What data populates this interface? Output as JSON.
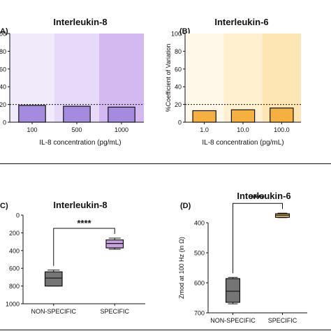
{
  "chart_data": [
    {
      "panel_label": "A)",
      "type": "bar",
      "title": "Interleukin-8",
      "xlabel": "IL-8 concentration (pg/mL)",
      "ylabel": "",
      "categories": [
        "100",
        "500",
        "1000"
      ],
      "values": [
        19,
        18,
        17
      ],
      "ylim": [
        0,
        100
      ],
      "yticks": [
        "0",
        "20",
        "40",
        "60",
        "80",
        "100"
      ],
      "ytick_values": [
        0,
        20,
        40,
        60,
        80,
        100
      ],
      "reference_line": 20,
      "bar_color": "#a48be0",
      "background_bands": [
        "#f1eafb",
        "#e6daf8",
        "#d4b8f0"
      ]
    },
    {
      "panel_label": "(B)",
      "type": "bar",
      "title": "Interleukin-6",
      "xlabel": "IL-8 concentration (pg/mL)",
      "ylabel": "%Coefficient of Variation",
      "categories": [
        "1.0",
        "10.0",
        "100.0"
      ],
      "values": [
        13,
        14,
        16
      ],
      "ylim": [
        0,
        100
      ],
      "yticks": [
        "0",
        "20",
        "40",
        "60",
        "80",
        "100"
      ],
      "ytick_values": [
        0,
        20,
        40,
        60,
        80,
        100
      ],
      "reference_line": 20,
      "bar_color": "#f5b041",
      "background_bands": [
        "#fff8e8",
        "#fff0cf",
        "#fde6b3"
      ]
    },
    {
      "panel_label": "C)",
      "type": "box",
      "title": "Interleukin-8",
      "xlabel": "",
      "ylabel": "",
      "categories": [
        "NON-SPECIFIC",
        "SPECIFIC"
      ],
      "boxes": [
        {
          "name": "NON-SPECIFIC",
          "min": 620,
          "q1": 640,
          "median": 710,
          "q3": 800,
          "max": 800,
          "color": "#757575"
        },
        {
          "name": "SPECIFIC",
          "min": 260,
          "q1": 280,
          "median": 320,
          "q3": 370,
          "max": 385,
          "color": "#c9a0e0"
        }
      ],
      "ylim": [
        1000,
        0
      ],
      "inverted": true,
      "yticks": [
        "0",
        "200",
        "400",
        "600",
        "800",
        "1000"
      ],
      "ytick_values": [
        0,
        200,
        400,
        600,
        800,
        1000
      ],
      "significance": "****"
    },
    {
      "panel_label": "(D)",
      "type": "box",
      "title": "Interleukin-6",
      "xlabel": "",
      "ylabel": "Zmod at 100  Hz (in Ω)",
      "categories": [
        "NON-SPECIFIC",
        "SPECIFIC"
      ],
      "boxes": [
        {
          "name": "NON-SPECIFIC",
          "min": 582,
          "q1": 586,
          "median": 628,
          "q3": 665,
          "max": 670,
          "color": "#757575"
        },
        {
          "name": "SPECIFIC",
          "min": 368,
          "q1": 370,
          "median": 375,
          "q3": 382,
          "max": 383,
          "color": "#f5c460"
        }
      ],
      "ylim": [
        700,
        400
      ],
      "inverted": true,
      "yticks": [
        "400",
        "500",
        "600",
        "700"
      ],
      "ytick_values": [
        400,
        500,
        600,
        700
      ],
      "significance": "****"
    }
  ]
}
